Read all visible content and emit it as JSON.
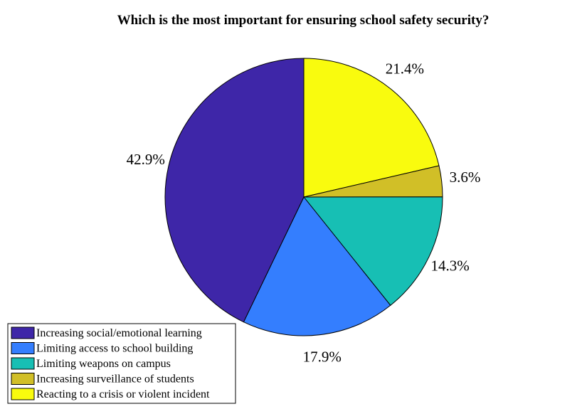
{
  "chart_data": {
    "type": "pie",
    "title": "Which is the most important for ensuring school safety security?",
    "slices": [
      {
        "label": "Reacting to a crisis or violent incident",
        "value": 21.4,
        "display": "21.4%",
        "color": "#f9fb0e"
      },
      {
        "label": "Increasing surveillance of students",
        "value": 3.6,
        "display": "3.6%",
        "color": "#d1bf27"
      },
      {
        "label": "Limiting weapons on campus",
        "value": 14.3,
        "display": "14.3%",
        "color": "#17bfb4"
      },
      {
        "label": "Limiting access to school building",
        "value": 17.9,
        "display": "17.9%",
        "color": "#347efe"
      },
      {
        "label": "Increasing social/emotional learning",
        "value": 42.9,
        "display": "42.9%",
        "color": "#3e26a8"
      }
    ],
    "legend": {
      "placement": "bottom-left",
      "order": [
        "Increasing social/emotional learning",
        "Limiting access to school building",
        "Limiting weapons on campus",
        "Increasing surveillance of students",
        "Reacting to a crisis or violent incident"
      ]
    }
  }
}
